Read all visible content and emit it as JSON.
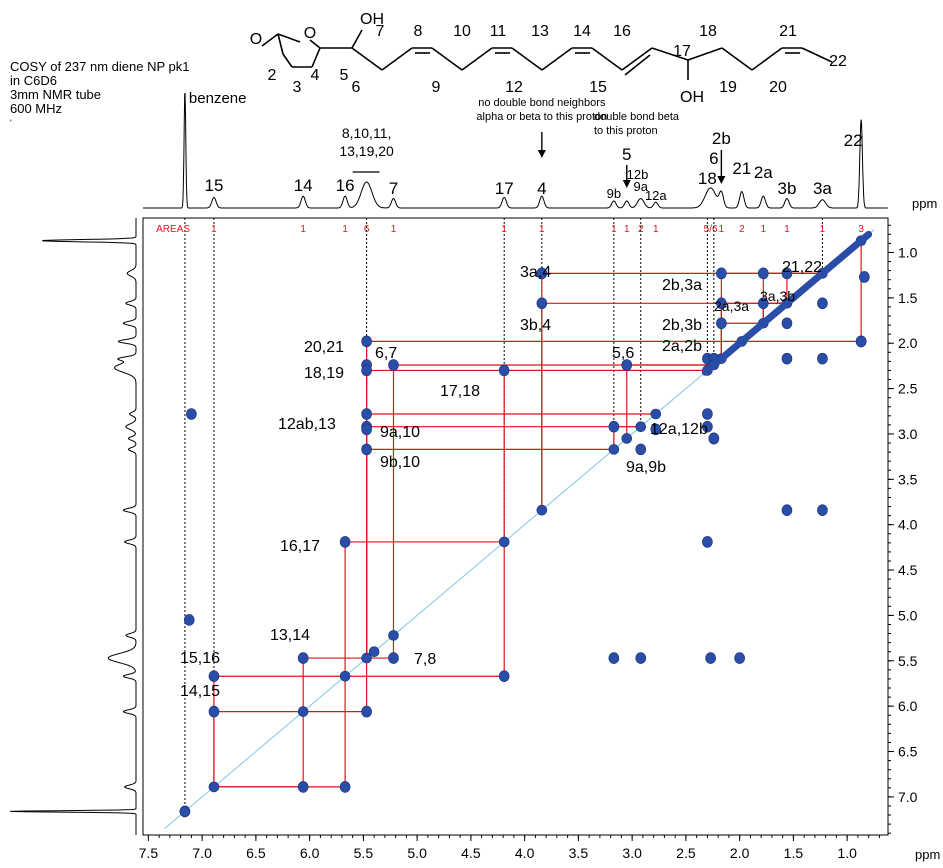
{
  "info": {
    "lines": [
      "COSY of 237 nm diene NP pk1",
      "in C6D6",
      "3mm NMR tube",
      "600 MHz",
      "'"
    ]
  },
  "axis": {
    "unit": "ppm"
  },
  "chart_data": {
    "type": "heatmap",
    "xlabel": "ppm",
    "ylabel": "ppm",
    "xlim": [
      7.55,
      0.62
    ],
    "ylim": [
      0.62,
      7.42
    ],
    "x_ticks": [
      "7.5",
      "7.0",
      "6.5",
      "6.0",
      "5.5",
      "5.0",
      "4.5",
      "4.0",
      "3.5",
      "3.0",
      "2.5",
      "2.0",
      "1.5",
      "1.0"
    ],
    "y_ticks": [
      "1.0",
      "1.5",
      "2.0",
      "2.5",
      "3.0",
      "3.5",
      "4.0",
      "4.5",
      "5.0",
      "5.5",
      "6.0",
      "6.5",
      "7.0"
    ],
    "areas": {
      "header": "AREAS",
      "values": [
        {
          "ppm": 6.89,
          "text": "1"
        },
        {
          "ppm": 6.06,
          "text": "1"
        },
        {
          "ppm": 5.67,
          "text": "1"
        },
        {
          "ppm": 5.47,
          "text": "6"
        },
        {
          "ppm": 5.22,
          "text": "1"
        },
        {
          "ppm": 4.19,
          "text": "1"
        },
        {
          "ppm": 3.84,
          "text": "1"
        },
        {
          "ppm": 3.17,
          "text": "1"
        },
        {
          "ppm": 3.05,
          "text": "1"
        },
        {
          "ppm": 2.92,
          "text": "2"
        },
        {
          "ppm": 2.78,
          "text": "1"
        },
        {
          "ppm": 2.27,
          "text": "5/6"
        },
        {
          "ppm": 2.17,
          "text": "1"
        },
        {
          "ppm": 1.98,
          "text": "2"
        },
        {
          "ppm": 1.78,
          "text": "1"
        },
        {
          "ppm": 1.56,
          "text": "1"
        },
        {
          "ppm": 1.23,
          "text": "1"
        },
        {
          "ppm": 0.87,
          "text": "3"
        }
      ]
    },
    "peak_labels": [
      {
        "text": "benzene",
        "ppm": 7.16
      },
      {
        "text": "15",
        "ppm": 6.89
      },
      {
        "text": "14",
        "ppm": 6.06
      },
      {
        "text": "16",
        "ppm": 5.67
      },
      {
        "text": "7",
        "ppm": 5.22
      },
      {
        "text": "17",
        "ppm": 4.19
      },
      {
        "text": "4",
        "ppm": 3.84
      },
      {
        "text": "9b",
        "ppm": 3.17
      },
      {
        "text": "5",
        "ppm": 3.05
      },
      {
        "text": "12b",
        "ppm": 2.95
      },
      {
        "text": "9a",
        "ppm": 2.92
      },
      {
        "text": "12a",
        "ppm": 2.78
      },
      {
        "text": "18",
        "ppm": 2.3
      },
      {
        "text": "6",
        "ppm": 2.24
      },
      {
        "text": "2b",
        "ppm": 2.17
      },
      {
        "text": "21",
        "ppm": 1.98
      },
      {
        "text": "2a",
        "ppm": 1.78
      },
      {
        "text": "3b",
        "ppm": 1.56
      },
      {
        "text": "3a",
        "ppm": 1.23
      },
      {
        "text": "22",
        "ppm": 0.87
      }
    ],
    "group_label": [
      "8,10,11,",
      "13,19,20"
    ],
    "annotations": [
      {
        "lines": [
          "no double bond neighbors",
          "alpha or beta to this proton"
        ]
      },
      {
        "lines": [
          "double bond beta",
          "to this proton"
        ]
      }
    ],
    "cross_peak_labels": [
      "3a,4",
      "3b,4",
      "2b,3a",
      "2a,3a",
      "3a,3b",
      "21,22",
      "2b,3b",
      "2a,2b",
      "20,21",
      "6,7",
      "5,6",
      "18,19",
      "17,18",
      "12ab,13",
      "9a,10",
      "12a,12b",
      "9b,10",
      "9a,9b",
      "16,17",
      "13,14",
      "7,8",
      "15,16",
      "14,15"
    ],
    "cross_peaks": [
      [
        3.84,
        1.23
      ],
      [
        3.84,
        1.56
      ],
      [
        2.17,
        1.23
      ],
      [
        1.78,
        1.23
      ],
      [
        1.56,
        1.23
      ],
      [
        0.87,
        1.98
      ],
      [
        2.17,
        1.56
      ],
      [
        1.78,
        1.56
      ],
      [
        2.17,
        1.78
      ],
      [
        5.47,
        1.98
      ],
      [
        5.47,
        2.24
      ],
      [
        5.22,
        2.24
      ],
      [
        3.05,
        2.24
      ],
      [
        5.47,
        2.3
      ],
      [
        4.19,
        2.3
      ],
      [
        5.47,
        2.78
      ],
      [
        5.47,
        2.92
      ],
      [
        5.47,
        2.95
      ],
      [
        3.17,
        2.92
      ],
      [
        2.92,
        3.17
      ],
      [
        2.78,
        2.95
      ],
      [
        5.47,
        3.17
      ],
      [
        5.67,
        4.19
      ],
      [
        6.06,
        5.47
      ],
      [
        5.22,
        5.47
      ],
      [
        6.89,
        5.67
      ],
      [
        4.19,
        5.67
      ],
      [
        6.89,
        6.06
      ],
      [
        5.47,
        6.06
      ],
      [
        6.06,
        6.89
      ],
      [
        5.67,
        6.89
      ],
      [
        2.3,
        2.17
      ],
      [
        2.24,
        2.17
      ],
      [
        2.24,
        3.05
      ],
      [
        2.3,
        2.92
      ],
      [
        2.3,
        2.78
      ],
      [
        2.24,
        3.05
      ],
      [
        2.3,
        4.19
      ],
      [
        2.27,
        5.47
      ],
      [
        3.17,
        5.47
      ],
      [
        2.92,
        5.47
      ],
      [
        2.0,
        5.47
      ],
      [
        1.23,
        2.17
      ],
      [
        1.56,
        2.17
      ],
      [
        0.87,
        1.98
      ],
      [
        1.56,
        3.84
      ],
      [
        1.23,
        3.84
      ],
      [
        1.23,
        1.56
      ],
      [
        1.56,
        1.78
      ],
      [
        0.84,
        1.27
      ],
      [
        7.16,
        7.16
      ],
      [
        7.1,
        2.78
      ],
      [
        7.12,
        5.05
      ]
    ]
  },
  "structure": {
    "atom_labels": [
      "O",
      "O",
      "OH",
      "7",
      "8",
      "10",
      "11",
      "13",
      "14",
      "16",
      "18",
      "21",
      "2",
      "4",
      "5",
      "3",
      "6",
      "9",
      "12",
      "17",
      "15",
      "19",
      "20",
      "22",
      "OH"
    ]
  }
}
